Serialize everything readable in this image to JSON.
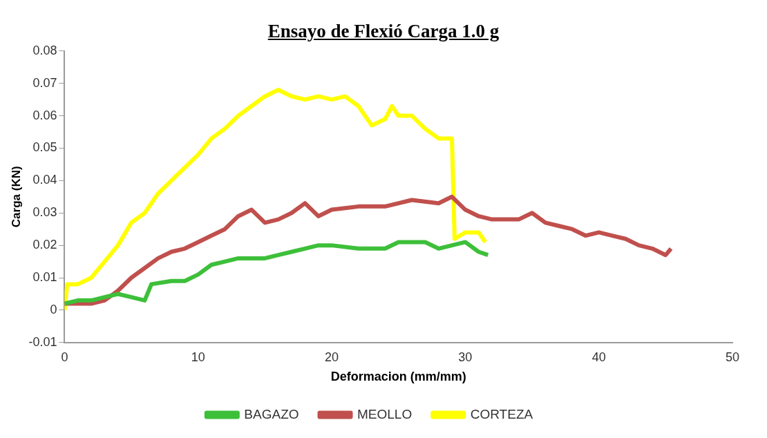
{
  "chart_data": {
    "type": "line",
    "title": "Ensayo de Flexió Carga 1.0 g",
    "xlabel": "Deformacion (mm/mm)",
    "ylabel": "Carga (KN)",
    "xlim": [
      0,
      50
    ],
    "xticks": [
      0,
      10,
      20,
      30,
      40,
      50
    ],
    "ylim": [
      -0.01,
      0.08
    ],
    "yticks": [
      -0.01,
      0,
      0.01,
      0.02,
      0.03,
      0.04,
      0.05,
      0.06,
      0.07,
      0.08
    ],
    "grid": false,
    "legend": "bottom",
    "marker": "none",
    "line_style": "solid",
    "series": [
      {
        "name": "BAGAZO",
        "color": "#3dbf3a",
        "x": [
          0,
          1,
          2,
          3,
          4,
          5,
          6,
          6.5,
          8,
          9,
          10,
          11,
          12,
          13,
          14,
          15,
          16,
          17,
          18,
          19,
          20,
          22,
          24,
          25,
          26,
          27,
          28,
          29,
          30,
          31,
          31.7
        ],
        "values": [
          0.002,
          0.003,
          0.003,
          0.004,
          0.005,
          0.004,
          0.003,
          0.008,
          0.009,
          0.009,
          0.011,
          0.014,
          0.015,
          0.016,
          0.016,
          0.016,
          0.017,
          0.018,
          0.019,
          0.02,
          0.02,
          0.019,
          0.019,
          0.021,
          0.021,
          0.021,
          0.019,
          0.02,
          0.021,
          0.018,
          0.017
        ]
      },
      {
        "name": "MEOLLO",
        "color": "#c0504d",
        "x": [
          0,
          1,
          2,
          3,
          4,
          5,
          6,
          7,
          8,
          9,
          10,
          11,
          12,
          13,
          14,
          15,
          16,
          17,
          18,
          19,
          20,
          22,
          24,
          26,
          28,
          29,
          30,
          31,
          32,
          34,
          35,
          36,
          37,
          38,
          39,
          40,
          41,
          42,
          43,
          44,
          45,
          45.4
        ],
        "values": [
          0.002,
          0.002,
          0.002,
          0.003,
          0.006,
          0.01,
          0.013,
          0.016,
          0.018,
          0.019,
          0.021,
          0.023,
          0.025,
          0.029,
          0.031,
          0.027,
          0.028,
          0.03,
          0.033,
          0.029,
          0.031,
          0.032,
          0.032,
          0.034,
          0.033,
          0.035,
          0.031,
          0.029,
          0.028,
          0.028,
          0.03,
          0.027,
          0.026,
          0.025,
          0.023,
          0.024,
          0.023,
          0.022,
          0.02,
          0.019,
          0.017,
          0.019
        ]
      },
      {
        "name": "CORTEZA",
        "color": "#ffff00",
        "x": [
          0,
          0.2,
          1,
          2,
          3,
          4,
          5,
          6,
          7,
          8,
          9,
          10,
          11,
          12,
          13,
          14,
          15,
          16,
          17,
          18,
          19,
          20,
          21,
          22,
          23,
          24,
          24.5,
          25,
          26,
          27,
          28,
          29,
          29.2,
          30,
          31,
          31.5
        ],
        "values": [
          0,
          0.008,
          0.008,
          0.01,
          0.015,
          0.02,
          0.027,
          0.03,
          0.036,
          0.04,
          0.044,
          0.048,
          0.053,
          0.056,
          0.06,
          0.063,
          0.066,
          0.068,
          0.066,
          0.065,
          0.066,
          0.065,
          0.066,
          0.063,
          0.057,
          0.059,
          0.063,
          0.06,
          0.06,
          0.056,
          0.053,
          0.053,
          0.022,
          0.024,
          0.024,
          0.021
        ]
      }
    ]
  }
}
